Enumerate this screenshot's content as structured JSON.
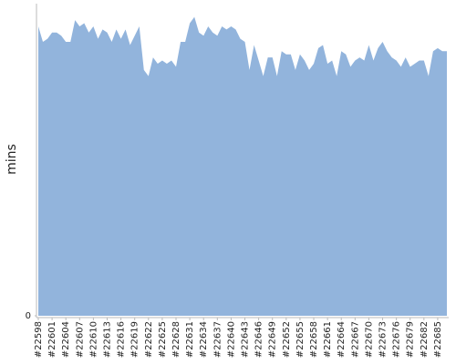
{
  "chart_data": {
    "type": "area",
    "y_label": "mins",
    "color": "#92b4dc",
    "categories": [
      "#22598",
      null,
      null,
      "#22601",
      null,
      null,
      "#22604",
      null,
      null,
      "#22607",
      null,
      null,
      "#22610",
      null,
      null,
      "#22613",
      null,
      null,
      "#22616",
      null,
      null,
      "#22619",
      null,
      null,
      "#22622",
      null,
      null,
      "#22625",
      null,
      null,
      "#22628",
      null,
      null,
      "#22631",
      null,
      null,
      "#22634",
      null,
      null,
      "#22637",
      null,
      null,
      "#22640",
      null,
      null,
      "#22643",
      null,
      null,
      "#22646",
      null,
      null,
      "#22649",
      null,
      null,
      "#22652",
      null,
      null,
      "#22655",
      null,
      null,
      "#22658",
      null,
      null,
      "#22661",
      null,
      null,
      "#22664",
      null,
      null,
      "#22667",
      null,
      null,
      "#22670",
      null,
      null,
      "#22673",
      null,
      null,
      "#22676",
      null,
      null,
      "#22679",
      null,
      null,
      "#22682",
      null,
      null,
      "#22685",
      null,
      null
    ],
    "values": [
      93,
      88,
      89,
      91,
      91,
      90,
      88,
      88,
      95,
      93,
      94,
      91,
      93,
      89,
      92,
      91,
      88,
      92,
      89,
      92,
      87,
      90,
      93,
      79,
      77,
      83,
      81,
      82,
      81,
      82,
      80,
      88,
      88,
      94,
      96,
      91,
      90,
      93,
      91,
      90,
      93,
      92,
      93,
      92,
      89,
      88,
      79,
      87,
      82,
      77,
      83,
      83,
      77,
      85,
      84,
      84,
      79,
      84,
      82,
      79,
      81,
      86,
      87,
      81,
      82,
      77,
      85,
      84,
      80,
      82,
      83,
      82,
      87,
      82,
      86,
      88,
      85,
      83,
      82,
      80,
      83,
      80,
      81,
      82,
      82,
      77,
      85,
      86,
      85,
      85
    ],
    "ylim": [
      0,
      100
    ],
    "yticks": [
      0
    ]
  }
}
